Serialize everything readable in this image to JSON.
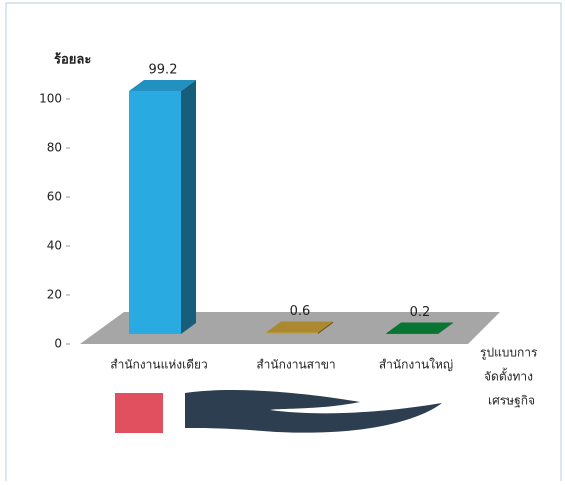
{
  "chart_data": {
    "type": "bar3d",
    "y_label": "ร้อยละ",
    "x_label": [
      "รูปแบบการ",
      "จัดตั้งทาง",
      "เศรษฐกิจ"
    ],
    "categories": [
      "สำนักงานแห่งเดียว",
      "สำนักงานสาขา",
      "สำนักงานใหญ่"
    ],
    "values": [
      99.2,
      0.6,
      0.2
    ],
    "colors": [
      "#29abe2",
      "#c9a13a",
      "#0b8a3c"
    ],
    "ylim": [
      0,
      100
    ],
    "yticks": [
      0,
      20,
      40,
      60,
      80,
      100
    ]
  }
}
